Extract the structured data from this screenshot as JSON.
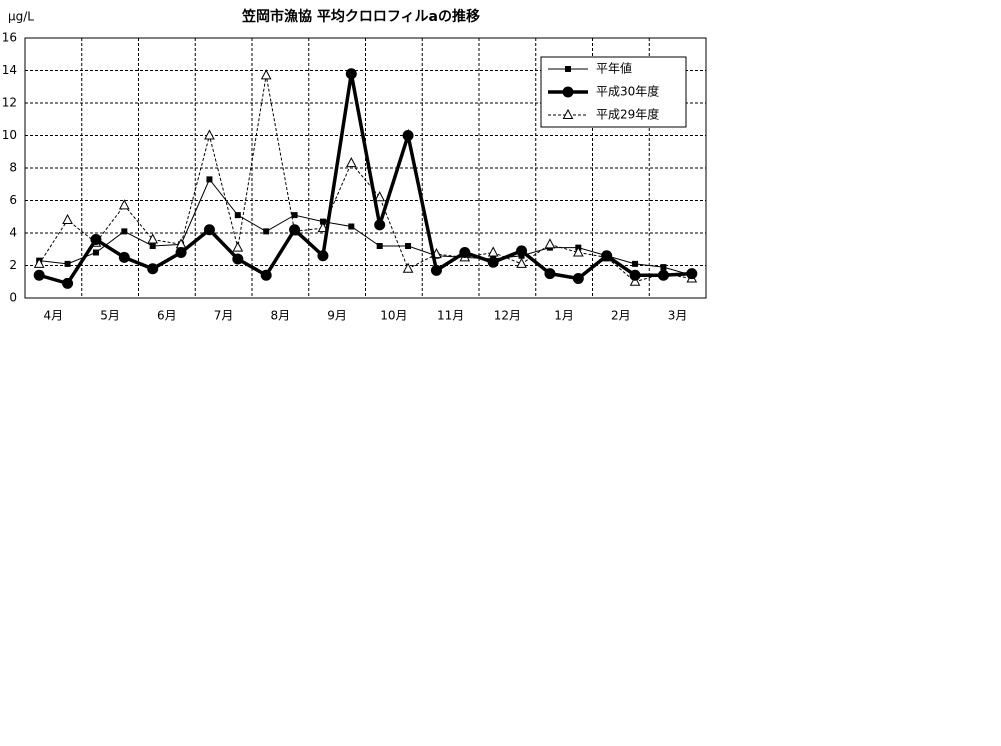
{
  "chart_data": {
    "type": "line",
    "title": "笠岡市漁協 平均クロロフィルaの推移",
    "y_label": "μg/L",
    "categories": [
      "4月",
      null,
      "5月",
      null,
      "6月",
      null,
      "7月",
      null,
      "8月",
      null,
      "9月",
      null,
      "10月",
      null,
      "11月",
      null,
      "12月",
      null,
      "1月",
      null,
      "2月",
      null,
      "3月",
      null
    ],
    "series": [
      {
        "name": "平年値",
        "color": "#000000",
        "marker": "square",
        "style": "thin",
        "values": [
          2.3,
          2.1,
          2.8,
          4.1,
          3.2,
          3.3,
          7.3,
          5.1,
          4.1,
          5.1,
          4.7,
          4.4,
          3.2,
          3.2,
          2.6,
          2.5,
          2.4,
          2.6,
          3.1,
          3.1,
          2.6,
          2.1,
          1.9,
          1.4
        ]
      },
      {
        "name": "平成30年度",
        "color": "#000000",
        "marker": "circle",
        "style": "thick",
        "values": [
          1.4,
          0.9,
          3.6,
          2.5,
          1.8,
          2.8,
          4.2,
          2.4,
          1.4,
          4.2,
          2.6,
          13.8,
          4.5,
          10.0,
          1.7,
          2.8,
          2.2,
          2.9,
          1.5,
          1.2,
          2.6,
          1.4,
          1.4,
          1.5
        ]
      },
      {
        "name": "平成29年度",
        "color": "#000000",
        "marker": "triangle",
        "style": "dashed",
        "values": [
          2.1,
          4.8,
          3.4,
          5.7,
          3.6,
          3.3,
          10.0,
          3.1,
          13.7,
          4.1,
          4.3,
          8.3,
          6.2,
          1.8,
          2.7,
          2.5,
          2.8,
          2.1,
          3.3,
          2.8,
          2.5,
          1.0,
          1.5,
          1.2
        ]
      }
    ],
    "ylim": [
      0,
      16
    ],
    "yticks": [
      0,
      2,
      4,
      6,
      8,
      10,
      12,
      14,
      16
    ],
    "grid": true,
    "legend": "upper right"
  }
}
